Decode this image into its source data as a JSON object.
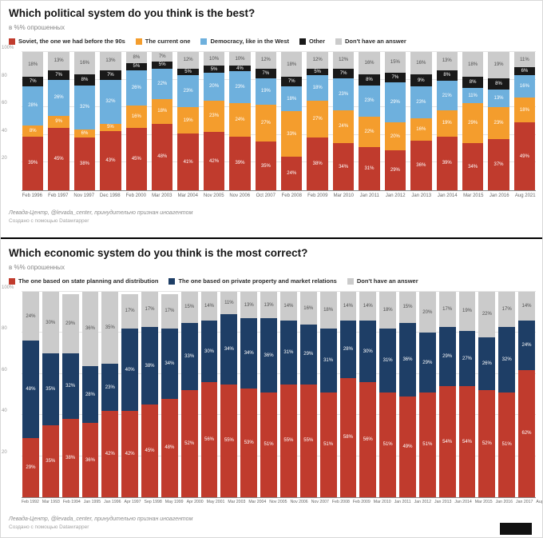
{
  "chart_data": [
    {
      "type": "bar",
      "stacked": true,
      "title": "Which political system do you think is the best?",
      "subtitle": "в %% опрошенных",
      "legend_position": "top",
      "ylim": [
        0,
        100
      ],
      "grid": true,
      "y_ticks": [
        {
          "label": "100%",
          "value": 100
        },
        {
          "label": "80",
          "value": 80
        },
        {
          "label": "60",
          "value": 60
        },
        {
          "label": "40",
          "value": 40
        },
        {
          "label": "20",
          "value": 20
        }
      ],
      "categories": [
        "Feb 1996",
        "Feb 1997",
        "Nov 1997",
        "Dec 1998",
        "Feb 2000",
        "Mar 2003",
        "Mar 2004",
        "Nov 2005",
        "Nov 2006",
        "Oct 2007",
        "Feb 2008",
        "Feb 2009",
        "Mar 2010",
        "Jan 2011",
        "Jan 2012",
        "Jan 2013",
        "Jan 2014",
        "Mar 2015",
        "Jan 2016",
        "Aug 2021"
      ],
      "series": [
        {
          "name": "Soviet, the one we had before the 90s",
          "color": "#c03b2d",
          "label_dark": false,
          "values": [
            39,
            45,
            38,
            43,
            45,
            48,
            41,
            42,
            39,
            35,
            24,
            38,
            34,
            31,
            29,
            36,
            39,
            34,
            37,
            49
          ]
        },
        {
          "name": "The current one",
          "color": "#f49d2d",
          "label_dark": false,
          "values": [
            8,
            9,
            6,
            5,
            16,
            18,
            19,
            23,
            24,
            27,
            33,
            27,
            24,
            22,
            20,
            16,
            19,
            29,
            23,
            18
          ]
        },
        {
          "name": "Democracy, like in the West",
          "color": "#6eb0dd",
          "label_dark": false,
          "values": [
            28,
            26,
            32,
            32,
            26,
            22,
            23,
            20,
            23,
            19,
            18,
            18,
            23,
            23,
            29,
            23,
            21,
            11,
            13,
            16
          ]
        },
        {
          "name": "Other",
          "color": "#191919",
          "label_dark": false,
          "values": [
            7,
            7,
            8,
            7,
            5,
            5,
            5,
            5,
            4,
            7,
            7,
            5,
            7,
            8,
            7,
            9,
            8,
            8,
            8,
            6
          ]
        },
        {
          "name": "Don't have an answer",
          "color": "#cbcbcb",
          "label_dark": true,
          "values": [
            18,
            13,
            16,
            13,
            8,
            7,
            12,
            10,
            10,
            12,
            18,
            12,
            12,
            16,
            15,
            16,
            13,
            18,
            19,
            11
          ]
        }
      ],
      "source_note": "Левада-Центр, @levada_center, принудительно признан иноагентом",
      "created_note": "Создано с помощью Datawrapper"
    },
    {
      "type": "bar",
      "stacked": true,
      "title": "Which economic system do you think is the most correct?",
      "subtitle": "в %% опрошенных",
      "legend_position": "top",
      "ylim": [
        0,
        100
      ],
      "grid": true,
      "y_ticks": [
        {
          "label": "100%",
          "value": 100
        },
        {
          "label": "80",
          "value": 80
        },
        {
          "label": "60",
          "value": 60
        },
        {
          "label": "40",
          "value": 40
        },
        {
          "label": "20",
          "value": 20
        }
      ],
      "categories": [
        "Feb 1992",
        "Mar 1993",
        "Feb 1994",
        "Jan 1995",
        "Jan 1996",
        "Apr 1997",
        "Sep 1998",
        "May 1999",
        "Apr 2000",
        "May 2001",
        "Mar 2003",
        "Mar 2004",
        "Nov 2005",
        "Nov 2006",
        "Nov 2007",
        "Feb 2008",
        "Feb 2009",
        "Mar 2010",
        "Jan 2011",
        "Jan 2012",
        "Jan 2013",
        "Jan 2014",
        "Mar 2015",
        "Jan 2016",
        "Jan 2017",
        "Aug 2021"
      ],
      "series": [
        {
          "name": "The one based on state planning and distribution",
          "color": "#c03b2d",
          "label_dark": false,
          "values": [
            29,
            35,
            38,
            36,
            42,
            42,
            45,
            48,
            52,
            56,
            55,
            53,
            51,
            55,
            55,
            51,
            58,
            56,
            51,
            49,
            51,
            54,
            54,
            52,
            51,
            62
          ]
        },
        {
          "name": "The one based on private property and market relations",
          "color": "#1e3e66",
          "label_dark": false,
          "values": [
            48,
            35,
            32,
            28,
            23,
            40,
            38,
            34,
            33,
            30,
            34,
            34,
            36,
            31,
            29,
            31,
            28,
            30,
            31,
            36,
            29,
            29,
            27,
            26,
            32,
            24
          ]
        },
        {
          "name": "Don't have an answer",
          "color": "#cbcbcb",
          "label_dark": true,
          "values": [
            24,
            30,
            29,
            36,
            35,
            17,
            17,
            17,
            15,
            14,
            11,
            13,
            13,
            14,
            16,
            18,
            14,
            14,
            18,
            15,
            20,
            17,
            19,
            22,
            17,
            14
          ]
        }
      ],
      "source_note": "Левада-Центр, @levada_center, принудительно признан иноагентом",
      "created_note": "Создано с помощью Datawrapper"
    }
  ]
}
